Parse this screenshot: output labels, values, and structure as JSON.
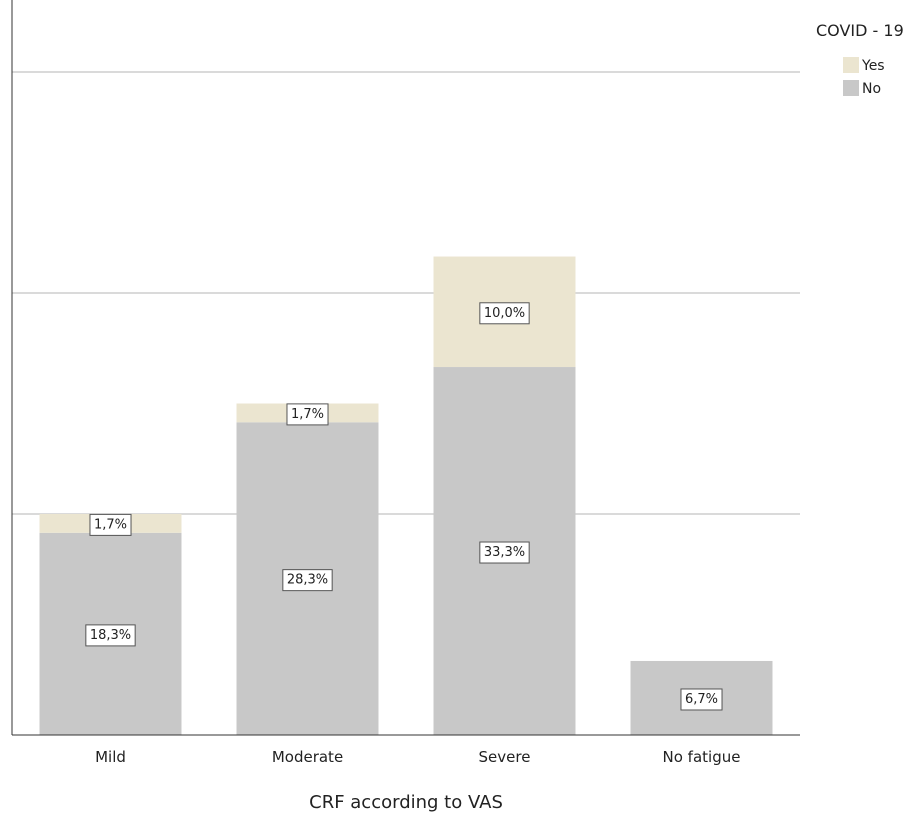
{
  "chart_data": {
    "type": "bar",
    "stacked": true,
    "categories": [
      "Mild",
      "Moderate",
      "Severe",
      "No fatigue"
    ],
    "series": [
      {
        "name": "No",
        "values": [
          18.3,
          28.3,
          33.3,
          6.7
        ],
        "labels": [
          "18,3%",
          "28,3%",
          "33,3%",
          "6,7%"
        ],
        "color": "#c8c8c8"
      },
      {
        "name": "Yes",
        "values": [
          1.7,
          1.7,
          10.0,
          0
        ],
        "labels": [
          "1,7%",
          "1,7%",
          "10,0%",
          ""
        ],
        "color": "#ebe5d0"
      }
    ],
    "xlabel": "CRF according to VAS",
    "ylabel": "",
    "ylim": [
      0,
      60
    ],
    "grid": true,
    "legend": {
      "title": "COVID - 19",
      "position": "top-right",
      "entries": [
        "Yes",
        "No"
      ]
    }
  }
}
